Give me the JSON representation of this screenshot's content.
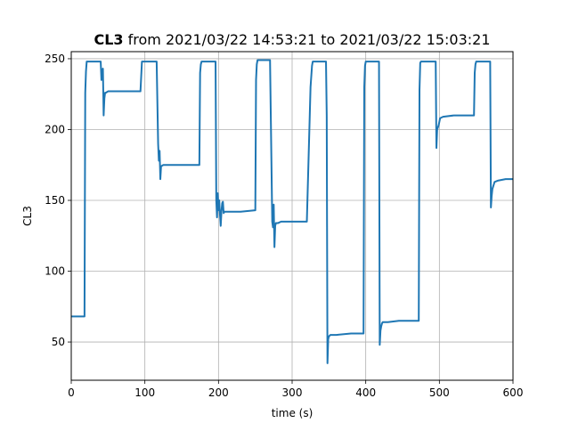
{
  "chart_data": {
    "type": "line",
    "title": {
      "bold": "CL3",
      "rest": " from 2021/03/22 14:53:21 to 2021/03/22 15:03:21"
    },
    "xlabel": "time (s)",
    "ylabel": "CL3",
    "xlim": [
      0,
      600
    ],
    "ylim": [
      23,
      255
    ],
    "xticks": [
      0,
      100,
      200,
      300,
      400,
      500,
      600
    ],
    "yticks": [
      50,
      100,
      150,
      200,
      250
    ],
    "grid": true,
    "line_color": "#1f77b4",
    "series": [
      {
        "x": [
          0,
          18,
          19,
          20,
          21,
          22,
          40,
          41,
          42,
          43,
          44,
          45,
          46,
          47,
          50,
          60,
          80,
          94,
          96,
          97,
          98,
          116,
          118,
          119,
          120,
          121,
          122,
          125,
          140,
          160,
          174,
          175,
          176,
          177,
          178,
          196,
          197,
          198,
          199,
          200,
          201,
          202,
          203,
          204,
          205,
          206,
          207,
          208,
          210,
          215,
          230,
          250,
          251,
          252,
          253,
          254,
          270,
          273,
          274,
          275,
          276,
          277,
          278,
          279,
          280,
          281,
          285,
          300,
          320,
          325,
          327,
          328,
          329,
          330,
          346,
          347,
          348,
          349,
          350,
          352,
          360,
          380,
          397,
          398,
          399,
          400,
          401,
          418,
          419,
          420,
          421,
          422,
          423,
          425,
          427,
          430,
          445,
          460,
          472,
          473,
          474,
          475,
          476,
          494,
          495,
          496,
          497,
          499,
          501,
          505,
          520,
          545,
          547,
          548,
          549,
          550,
          568,
          569,
          570,
          571,
          572,
          575,
          580,
          590,
          600
        ],
        "y": [
          68,
          68,
          226,
          241,
          248,
          248,
          248,
          235,
          242,
          243,
          210,
          222,
          226,
          226,
          227,
          227,
          227,
          227,
          248,
          248,
          248,
          248,
          190,
          178,
          185,
          165,
          174,
          175,
          175,
          175,
          175,
          240,
          246,
          248,
          248,
          248,
          150,
          138,
          155,
          143,
          150,
          140,
          132,
          142,
          148,
          149,
          141,
          142,
          142,
          142,
          142,
          143,
          235,
          246,
          249,
          249,
          249,
          135,
          131,
          147,
          117,
          132,
          134,
          134,
          134,
          134,
          135,
          135,
          135,
          230,
          245,
          248,
          248,
          248,
          248,
          210,
          35,
          52,
          54,
          55,
          55,
          56,
          56,
          230,
          245,
          248,
          248,
          248,
          48,
          58,
          61,
          63,
          64,
          64,
          64,
          64,
          65,
          65,
          65,
          228,
          247,
          248,
          248,
          248,
          248,
          187,
          200,
          203,
          208,
          209,
          210,
          210,
          210,
          240,
          246,
          248,
          248,
          248,
          145,
          153,
          158,
          163,
          164,
          165,
          165
        ]
      }
    ]
  }
}
